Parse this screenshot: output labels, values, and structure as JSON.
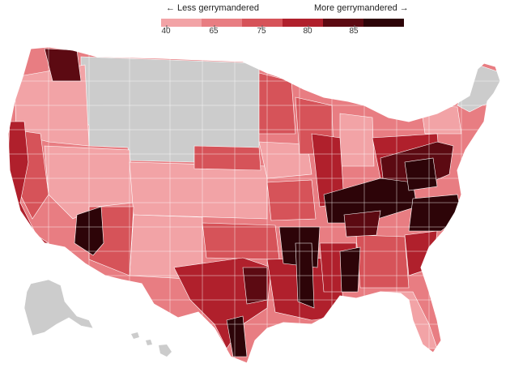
{
  "legend": {
    "less_label": "← Less gerrymandered",
    "more_label": "More gerrymandered →",
    "ticks": [
      "40",
      "65",
      "75",
      "80",
      "85"
    ],
    "colors": [
      "#f2a3a6",
      "#e87d82",
      "#d65359",
      "#b0202c",
      "#5c0a12",
      "#2d0408"
    ]
  },
  "map": {
    "gray": "#cccccc",
    "border": "#ffffff"
  }
}
